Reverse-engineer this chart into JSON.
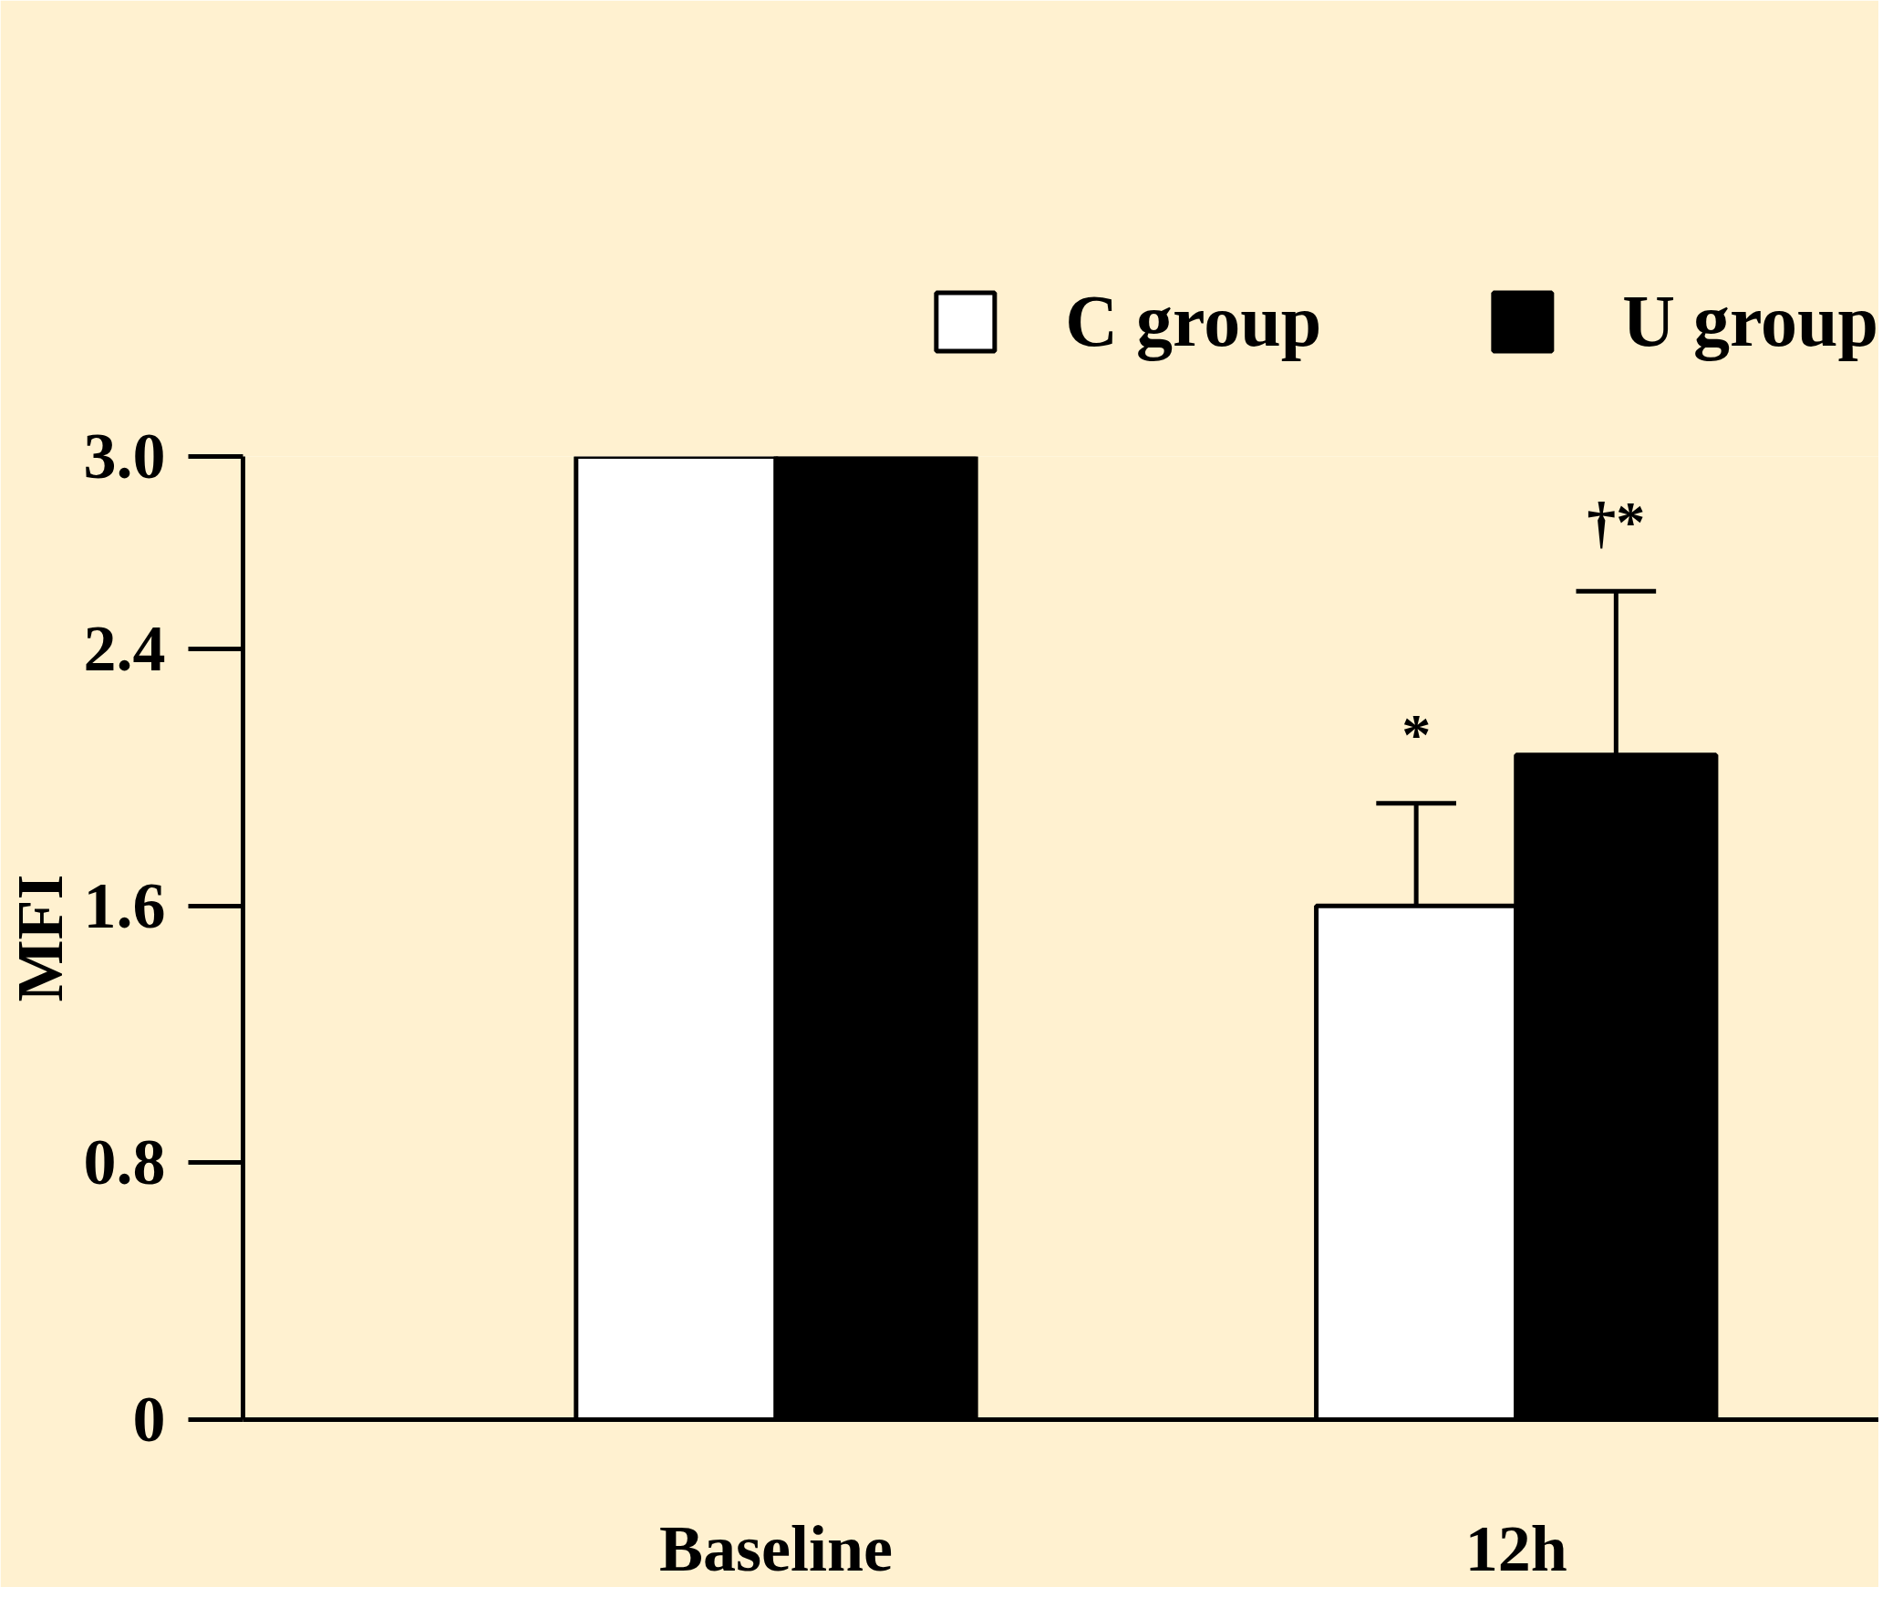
{
  "chart_data": {
    "type": "bar",
    "ylabel": "MFI",
    "categories": [
      "Baseline",
      "12h"
    ],
    "series": [
      {
        "name": "C group",
        "color": "#ffffff",
        "values": [
          3.0,
          1.6
        ],
        "errors": [
          null,
          0.32
        ]
      },
      {
        "name": "U group",
        "color": "#000000",
        "values": [
          3.0,
          2.07
        ],
        "errors": [
          null,
          0.51
        ]
      }
    ],
    "ylim": [
      0,
      3.0
    ],
    "yticks": [
      0,
      0.8,
      1.6,
      2.4,
      {
        "value": 3.0,
        "label": "3.0"
      }
    ],
    "annotations": [
      "*",
      "†*"
    ],
    "grid": false,
    "legend": "top right"
  }
}
